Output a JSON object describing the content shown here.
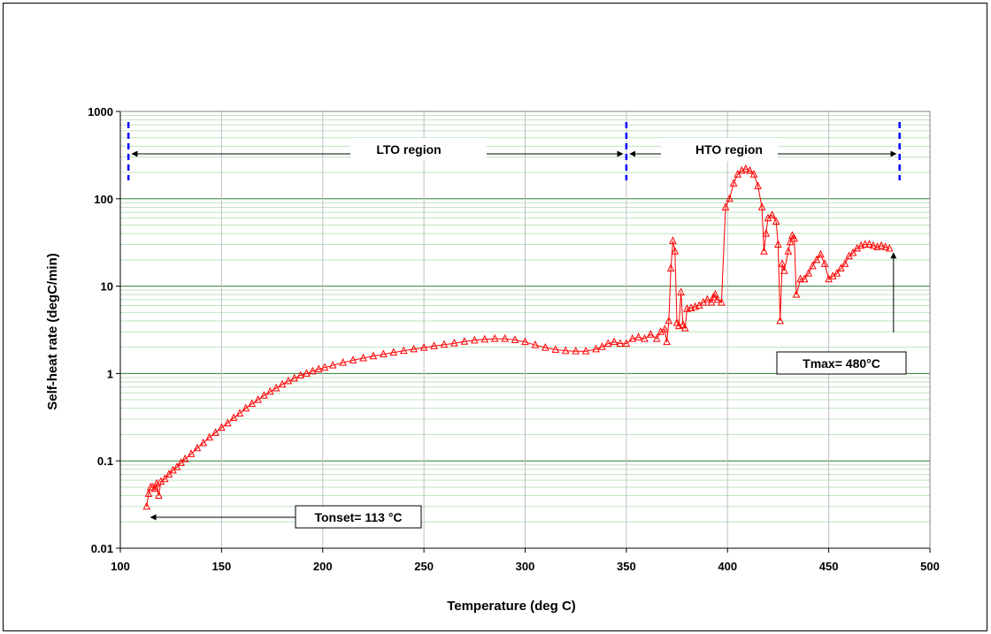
{
  "chart_data": {
    "type": "scatter",
    "xlabel": "Temperature (deg C)",
    "ylabel": "Self-heat rate (degC/min)",
    "xlim": [
      100,
      500
    ],
    "ylim": [
      0.01,
      1000
    ],
    "yscale": "log",
    "xticks": [
      "100",
      "150",
      "200",
      "250",
      "300",
      "350",
      "400",
      "450",
      "500"
    ],
    "yticks": [
      "0.01",
      "0.1",
      "1",
      "10",
      "100",
      "1000"
    ],
    "grid": true,
    "legend": "none",
    "series": [
      {
        "color": "#ff0000",
        "marker": "triangle-open",
        "points": [
          [
            113,
            0.03
          ],
          [
            114,
            0.042
          ],
          [
            115,
            0.05
          ],
          [
            116,
            0.05
          ],
          [
            117,
            0.048
          ],
          [
            118,
            0.055
          ],
          [
            119,
            0.04
          ],
          [
            120,
            0.058
          ],
          [
            122,
            0.062
          ],
          [
            124,
            0.07
          ],
          [
            126,
            0.078
          ],
          [
            128,
            0.085
          ],
          [
            130,
            0.095
          ],
          [
            132,
            0.105
          ],
          [
            135,
            0.12
          ],
          [
            138,
            0.14
          ],
          [
            141,
            0.16
          ],
          [
            144,
            0.185
          ],
          [
            147,
            0.21
          ],
          [
            150,
            0.24
          ],
          [
            153,
            0.27
          ],
          [
            156,
            0.31
          ],
          [
            159,
            0.35
          ],
          [
            162,
            0.4
          ],
          [
            165,
            0.45
          ],
          [
            168,
            0.5
          ],
          [
            171,
            0.56
          ],
          [
            174,
            0.62
          ],
          [
            177,
            0.68
          ],
          [
            180,
            0.75
          ],
          [
            183,
            0.82
          ],
          [
            186,
            0.88
          ],
          [
            189,
            0.95
          ],
          [
            192,
            1.0
          ],
          [
            195,
            1.06
          ],
          [
            198,
            1.12
          ],
          [
            201,
            1.17
          ],
          [
            205,
            1.24
          ],
          [
            210,
            1.33
          ],
          [
            215,
            1.42
          ],
          [
            220,
            1.5
          ],
          [
            225,
            1.58
          ],
          [
            230,
            1.66
          ],
          [
            235,
            1.74
          ],
          [
            240,
            1.82
          ],
          [
            245,
            1.9
          ],
          [
            250,
            1.98
          ],
          [
            255,
            2.06
          ],
          [
            260,
            2.14
          ],
          [
            265,
            2.22
          ],
          [
            270,
            2.32
          ],
          [
            275,
            2.4
          ],
          [
            280,
            2.46
          ],
          [
            285,
            2.5
          ],
          [
            290,
            2.5
          ],
          [
            295,
            2.42
          ],
          [
            300,
            2.3
          ],
          [
            305,
            2.12
          ],
          [
            310,
            1.98
          ],
          [
            315,
            1.88
          ],
          [
            320,
            1.82
          ],
          [
            325,
            1.8
          ],
          [
            330,
            1.8
          ],
          [
            335,
            1.9
          ],
          [
            338,
            2.02
          ],
          [
            341,
            2.2
          ],
          [
            344,
            2.3
          ],
          [
            347,
            2.2
          ],
          [
            350,
            2.2
          ],
          [
            353,
            2.5
          ],
          [
            356,
            2.6
          ],
          [
            359,
            2.5
          ],
          [
            362,
            2.8
          ],
          [
            365,
            2.5
          ],
          [
            367,
            3.0
          ],
          [
            369,
            3.2
          ],
          [
            370,
            2.3
          ],
          [
            371,
            4.0
          ],
          [
            372,
            16
          ],
          [
            373,
            33
          ],
          [
            374,
            25
          ],
          [
            375,
            3.8
          ],
          [
            376,
            3.5
          ],
          [
            377,
            8.5
          ],
          [
            378,
            3.6
          ],
          [
            379,
            3.3
          ],
          [
            380,
            5.5
          ],
          [
            382,
            5.6
          ],
          [
            384,
            5.8
          ],
          [
            386,
            6.0
          ],
          [
            388,
            6.5
          ],
          [
            390,
            7.0
          ],
          [
            392,
            6.5
          ],
          [
            393,
            7.5
          ],
          [
            394,
            8.0
          ],
          [
            395,
            7.0
          ],
          [
            397,
            6.5
          ],
          [
            399,
            80
          ],
          [
            401,
            100
          ],
          [
            403,
            150
          ],
          [
            405,
            190
          ],
          [
            407,
            210
          ],
          [
            409,
            220
          ],
          [
            411,
            210
          ],
          [
            413,
            190
          ],
          [
            415,
            140
          ],
          [
            417,
            80
          ],
          [
            418,
            25
          ],
          [
            419,
            40
          ],
          [
            420,
            60
          ],
          [
            422,
            65
          ],
          [
            424,
            55
          ],
          [
            425,
            30
          ],
          [
            426,
            4.0
          ],
          [
            427,
            18
          ],
          [
            428,
            15
          ],
          [
            430,
            25
          ],
          [
            431,
            32
          ],
          [
            432,
            38
          ],
          [
            433,
            35
          ],
          [
            434,
            8.0
          ],
          [
            436,
            12
          ],
          [
            438,
            12
          ],
          [
            440,
            14
          ],
          [
            442,
            17
          ],
          [
            444,
            20
          ],
          [
            446,
            23
          ],
          [
            448,
            18
          ],
          [
            450,
            12
          ],
          [
            452,
            13
          ],
          [
            454,
            14
          ],
          [
            456,
            16
          ],
          [
            458,
            18
          ],
          [
            460,
            22
          ],
          [
            462,
            24
          ],
          [
            464,
            27
          ],
          [
            466,
            29
          ],
          [
            468,
            30
          ],
          [
            470,
            30
          ],
          [
            472,
            29
          ],
          [
            474,
            28
          ],
          [
            476,
            29
          ],
          [
            478,
            28
          ],
          [
            480,
            27
          ]
        ]
      }
    ],
    "annotations": [
      {
        "text": "LTO region",
        "x_from": 104,
        "x_to": 350
      },
      {
        "text": "HTO region",
        "x_from": 350,
        "x_to": 485
      },
      {
        "text": "Tonset= 113 °C"
      },
      {
        "text": "Tmax= 480°C"
      }
    ],
    "region_markers_x": [
      104,
      350,
      485
    ]
  }
}
